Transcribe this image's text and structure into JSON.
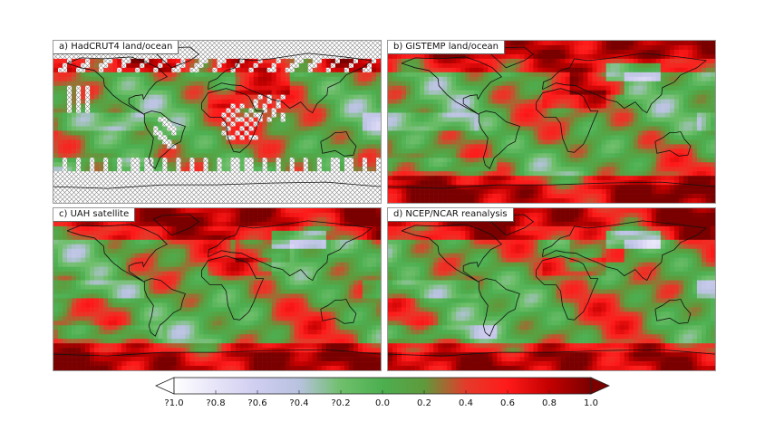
{
  "chart_data": [
    {
      "type": "heatmap",
      "title": "a) HadCRUT4 land/ocean",
      "mask": "hatch-missing"
    },
    {
      "type": "heatmap",
      "title": "b) GISTEMP land/ocean"
    },
    {
      "type": "heatmap",
      "title": "c) UAH satellite"
    },
    {
      "type": "heatmap",
      "title": "d) NCEP/NCAR reanalysis"
    }
  ],
  "colorbar": {
    "min": -1.0,
    "max": 1.0,
    "tick_values": [
      -1.0,
      -0.8,
      -0.6,
      -0.4,
      -0.2,
      0.0,
      0.2,
      0.4,
      0.6,
      0.8,
      1.0
    ],
    "tick_labels": [
      "?1.0",
      "?0.8",
      "?0.6",
      "?0.4",
      "?0.2",
      "0.0",
      "0.2",
      "0.4",
      "0.6",
      "0.8",
      "1.0"
    ],
    "colors": [
      "#ffffff",
      "#e6e4f7",
      "#cfcdf0",
      "#b8c2df",
      "#6fbf6b",
      "#4caf50",
      "#5f9a3c",
      "#e43b2a",
      "#ff1a1a",
      "#c40000",
      "#7a0000"
    ]
  }
}
